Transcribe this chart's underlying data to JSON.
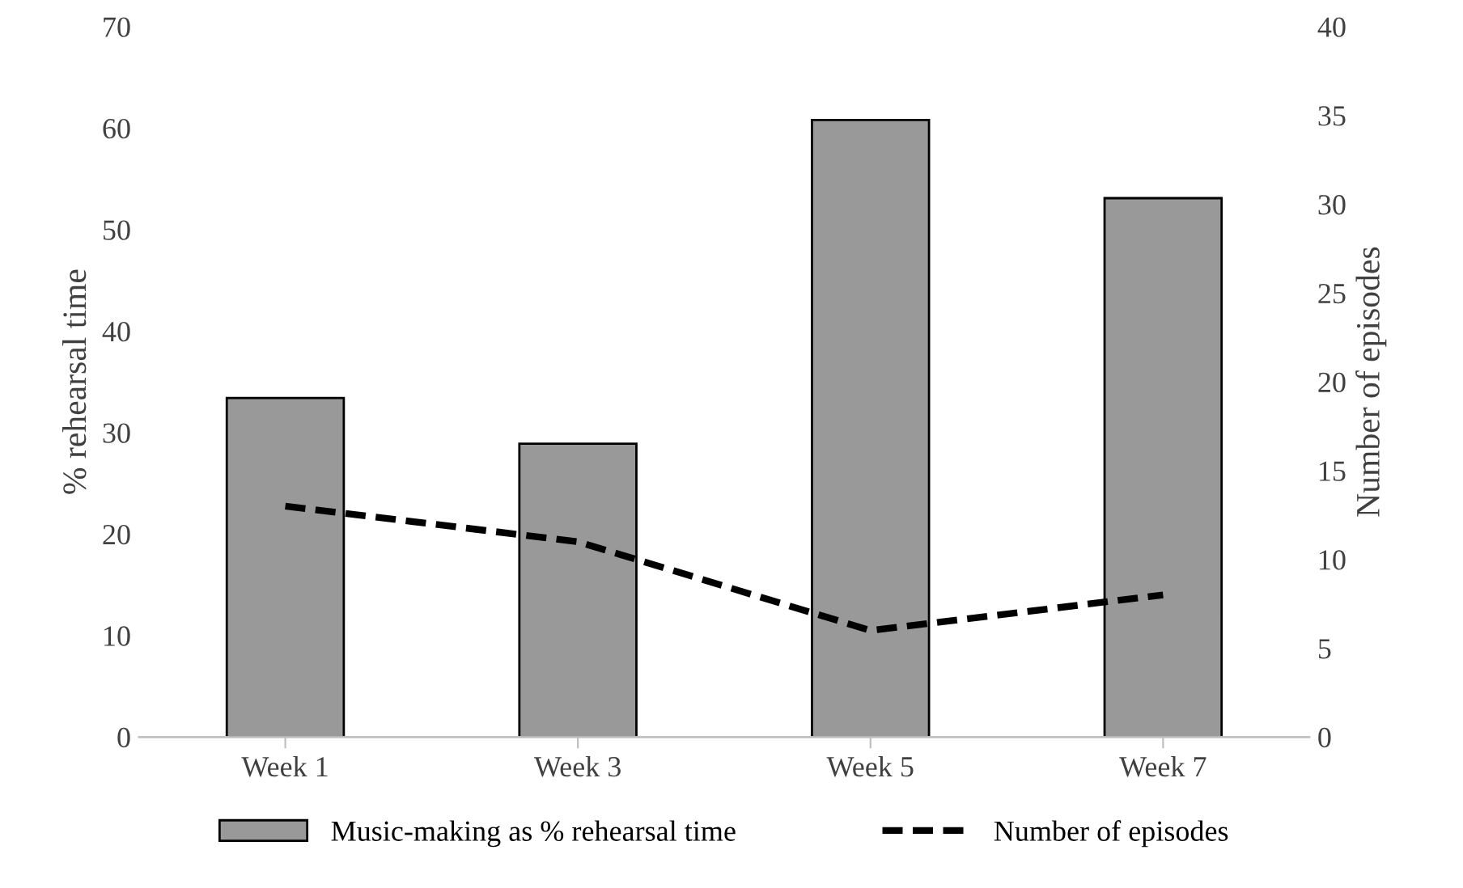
{
  "chart_data": {
    "type": "bar",
    "categories": [
      "Week 1",
      "Week 3",
      "Week 5",
      "Week 7"
    ],
    "ylabel": "% rehearsal time",
    "y2label": "Number of episodes",
    "series": [
      {
        "name": "Music-making as % rehearsal time",
        "color": "#999999",
        "values": [
          33.4,
          28.9,
          60.8,
          53.1
        ]
      },
      {
        "name": "Number of episodes",
        "type": "line",
        "axis": "y2",
        "color": "#000000",
        "line_style": "dashed",
        "values": [
          13,
          11,
          6,
          8
        ]
      }
    ],
    "ylim": [
      0,
      70
    ],
    "yticks": [
      0,
      10,
      20,
      30,
      40,
      50,
      60,
      70
    ],
    "y2lim": [
      0,
      40
    ],
    "y2ticks": [
      0,
      5,
      10,
      15,
      20,
      25,
      30,
      35,
      40
    ],
    "grid": false,
    "legend": "bottom"
  }
}
